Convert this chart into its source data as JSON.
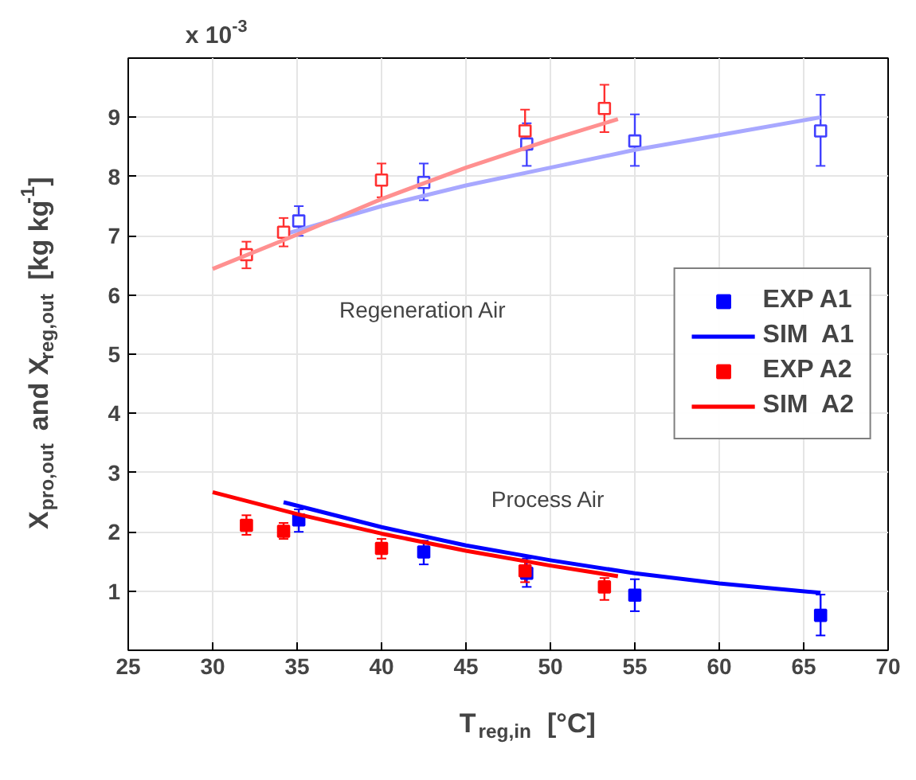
{
  "chart_data": {
    "type": "scatter",
    "xlabel": "T$_{reg,in}$ [°C]",
    "ylabel": "X$_{pro,out}$ and X$_{reg,out}$ [kg kg$^{-1}$]",
    "xlim": [
      25,
      70
    ],
    "xticks": [
      25,
      30,
      35,
      40,
      45,
      50,
      55,
      60,
      65,
      70
    ],
    "ylim": [
      0,
      10
    ],
    "yticks": [
      1,
      2,
      3,
      4,
      5,
      6,
      7,
      8,
      9
    ],
    "grid": true,
    "legend": "right",
    "annotations": [
      "x 10$^{-3}$",
      "Regeneration Air",
      "Process Air"
    ],
    "series": [
      {
        "name": "EXP A1",
        "marker": "square",
        "color": "#4040ff",
        "x": [
          35.1,
          42.5,
          48.6,
          55,
          66
        ],
        "values": [
          7.25,
          7.9,
          8.55,
          8.6,
          8.77
        ],
        "errors": [
          [
            7.0,
            7.5
          ],
          [
            7.6,
            8.22
          ],
          [
            8.18,
            8.9
          ],
          [
            8.18,
            9.05
          ],
          [
            8.18,
            9.38
          ]
        ]
      },
      {
        "marker": "square",
        "color": "#0000ff",
        "x": [
          35.1,
          42.5,
          48.6,
          55,
          66
        ],
        "values": [
          2.2,
          1.66,
          1.3,
          0.93,
          0.59
        ],
        "errors": [
          [
            2.0,
            2.38
          ],
          [
            1.45,
            1.85
          ],
          [
            1.07,
            1.55
          ],
          [
            0.66,
            1.2
          ],
          [
            0.25,
            0.94
          ]
        ]
      },
      {
        "name": "SIM  A1",
        "type": "line",
        "marker": "none",
        "color": "#a8a8ff",
        "x": [
          34.2,
          40,
          45,
          50,
          55,
          60,
          66
        ],
        "values": [
          7.02,
          7.5,
          7.85,
          8.15,
          8.45,
          8.7,
          9.0
        ]
      },
      {
        "type": "line",
        "marker": "none",
        "color": "#0000ff",
        "x": [
          34.2,
          40,
          45,
          50,
          55,
          60,
          66
        ],
        "values": [
          2.5,
          2.08,
          1.77,
          1.52,
          1.3,
          1.13,
          0.97
        ]
      },
      {
        "name": "EXP A2",
        "marker": "square",
        "color": "#ff3030",
        "x": [
          32,
          34.2,
          40,
          48.5,
          53.2
        ],
        "values": [
          6.68,
          7.06,
          7.94,
          8.77,
          9.15
        ],
        "errors": [
          [
            6.45,
            6.9
          ],
          [
            6.82,
            7.3
          ],
          [
            7.65,
            8.22
          ],
          [
            8.45,
            9.13
          ],
          [
            8.75,
            9.55
          ]
        ]
      },
      {
        "marker": "square",
        "color": "#ff0000",
        "x": [
          32,
          34.2,
          40,
          48.5,
          53.2
        ],
        "values": [
          2.11,
          2.01,
          1.72,
          1.34,
          1.07
        ],
        "errors": [
          [
            1.95,
            2.28
          ],
          [
            1.88,
            2.15
          ],
          [
            1.55,
            1.88
          ],
          [
            1.15,
            1.5
          ],
          [
            0.85,
            1.22
          ]
        ]
      },
      {
        "name": "SIM  A2",
        "type": "line",
        "marker": "none",
        "color": "#ff9090",
        "x": [
          30,
          35,
          40,
          45,
          50,
          54
        ],
        "values": [
          6.44,
          7.02,
          7.62,
          8.15,
          8.62,
          8.97
        ]
      },
      {
        "type": "line",
        "marker": "none",
        "color": "#ff0000",
        "x": [
          30,
          35,
          40,
          45,
          50,
          54
        ],
        "values": [
          2.67,
          2.3,
          1.97,
          1.68,
          1.43,
          1.25
        ]
      }
    ]
  }
}
